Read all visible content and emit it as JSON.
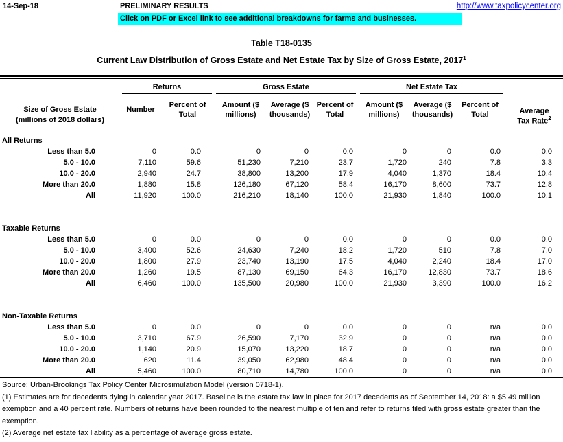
{
  "colors": {
    "banner_bg": "#00FFFF",
    "link_blue": "#0000FF"
  },
  "header": {
    "date": "14-Sep-18",
    "preliminary": "PRELIMINARY RESULTS",
    "url": "http://www.taxpolicycenter.org",
    "banner": "Click on PDF or Excel link to see additional breakdowns for farms and businesses."
  },
  "title": {
    "line1": "Table T18-0135",
    "line2": "Current Law Distribution of Gross Estate and Net Estate Tax by Size of Gross Estate, 2017",
    "line2_sup": "1"
  },
  "table": {
    "row_header": {
      "line1": "Size of Gross Estate",
      "line2": "(millions of 2018 dollars)"
    },
    "groups": [
      {
        "label": "Returns"
      },
      {
        "label": "Gross Estate"
      },
      {
        "label": "Net Estate Tax"
      }
    ],
    "columns": [
      "Number",
      "Percent of\nTotal",
      "Amount ($\nmillions)",
      "Average ($\nthousands)",
      "Percent of\nTotal",
      "Amount ($\nmillions)",
      "Average ($\nthousands)",
      "Percent of\nTotal"
    ],
    "avg_header": {
      "line1": "Average",
      "line2": "Tax Rate",
      "sup": "2"
    },
    "sections": [
      {
        "label": "All Returns",
        "rows": [
          {
            "label": "Less than 5.0",
            "cells": [
              "0",
              "0.0",
              "0",
              "0",
              "0.0",
              "0",
              "0",
              "0.0",
              "0.0"
            ]
          },
          {
            "label": "5.0 - 10.0",
            "cells": [
              "7,110",
              "59.6",
              "51,230",
              "7,210",
              "23.7",
              "1,720",
              "240",
              "7.8",
              "3.3"
            ]
          },
          {
            "label": "10.0 - 20.0",
            "cells": [
              "2,940",
              "24.7",
              "38,800",
              "13,200",
              "17.9",
              "4,040",
              "1,370",
              "18.4",
              "10.4"
            ]
          },
          {
            "label": "More than 20.0",
            "cells": [
              "1,880",
              "15.8",
              "126,180",
              "67,120",
              "58.4",
              "16,170",
              "8,600",
              "73.7",
              "12.8"
            ]
          },
          {
            "label": "All",
            "cells": [
              "11,920",
              "100.0",
              "216,210",
              "18,140",
              "100.0",
              "21,930",
              "1,840",
              "100.0",
              "10.1"
            ]
          }
        ]
      },
      {
        "label": "Taxable Returns",
        "rows": [
          {
            "label": "Less than 5.0",
            "cells": [
              "0",
              "0.0",
              "0",
              "0",
              "0.0",
              "0",
              "0",
              "0.0",
              "0.0"
            ]
          },
          {
            "label": "5.0 - 10.0",
            "cells": [
              "3,400",
              "52.6",
              "24,630",
              "7,240",
              "18.2",
              "1,720",
              "510",
              "7.8",
              "7.0"
            ]
          },
          {
            "label": "10.0 - 20.0",
            "cells": [
              "1,800",
              "27.9",
              "23,740",
              "13,190",
              "17.5",
              "4,040",
              "2,240",
              "18.4",
              "17.0"
            ]
          },
          {
            "label": "More than 20.0",
            "cells": [
              "1,260",
              "19.5",
              "87,130",
              "69,150",
              "64.3",
              "16,170",
              "12,830",
              "73.7",
              "18.6"
            ]
          },
          {
            "label": "All",
            "cells": [
              "6,460",
              "100.0",
              "135,500",
              "20,980",
              "100.0",
              "21,930",
              "3,390",
              "100.0",
              "16.2"
            ]
          }
        ]
      },
      {
        "label": "Non-Taxable Returns",
        "rows": [
          {
            "label": "Less than 5.0",
            "cells": [
              "0",
              "0.0",
              "0",
              "0",
              "0.0",
              "0",
              "0",
              "n/a",
              "0.0"
            ]
          },
          {
            "label": "5.0 - 10.0",
            "cells": [
              "3,710",
              "67.9",
              "26,590",
              "7,170",
              "32.9",
              "0",
              "0",
              "n/a",
              "0.0"
            ]
          },
          {
            "label": "10.0 - 20.0",
            "cells": [
              "1,140",
              "20.9",
              "15,070",
              "13,220",
              "18.7",
              "0",
              "0",
              "n/a",
              "0.0"
            ]
          },
          {
            "label": "More than 20.0",
            "cells": [
              "620",
              "11.4",
              "39,050",
              "62,980",
              "48.4",
              "0",
              "0",
              "n/a",
              "0.0"
            ]
          },
          {
            "label": "All",
            "cells": [
              "5,460",
              "100.0",
              "80,710",
              "14,780",
              "100.0",
              "0",
              "0",
              "n/a",
              "0.0"
            ]
          }
        ]
      }
    ]
  },
  "footnotes": {
    "source": "Source: Urban-Brookings Tax Policy Center Microsimulation Model (version 0718-1).",
    "note1": "(1) Estimates are for decedents dying in calendar year 2017. Baseline is the estate tax law in place for 2017 decedents as of September 14, 2018: a $5.49 million exemption and a 40 percent rate. Numbers of returns have been rounded to the nearest multiple of ten and refer to returns filed with gross estate greater than the exemption.",
    "note2": "(2) Average net estate tax liability as a percentage of average gross estate."
  }
}
